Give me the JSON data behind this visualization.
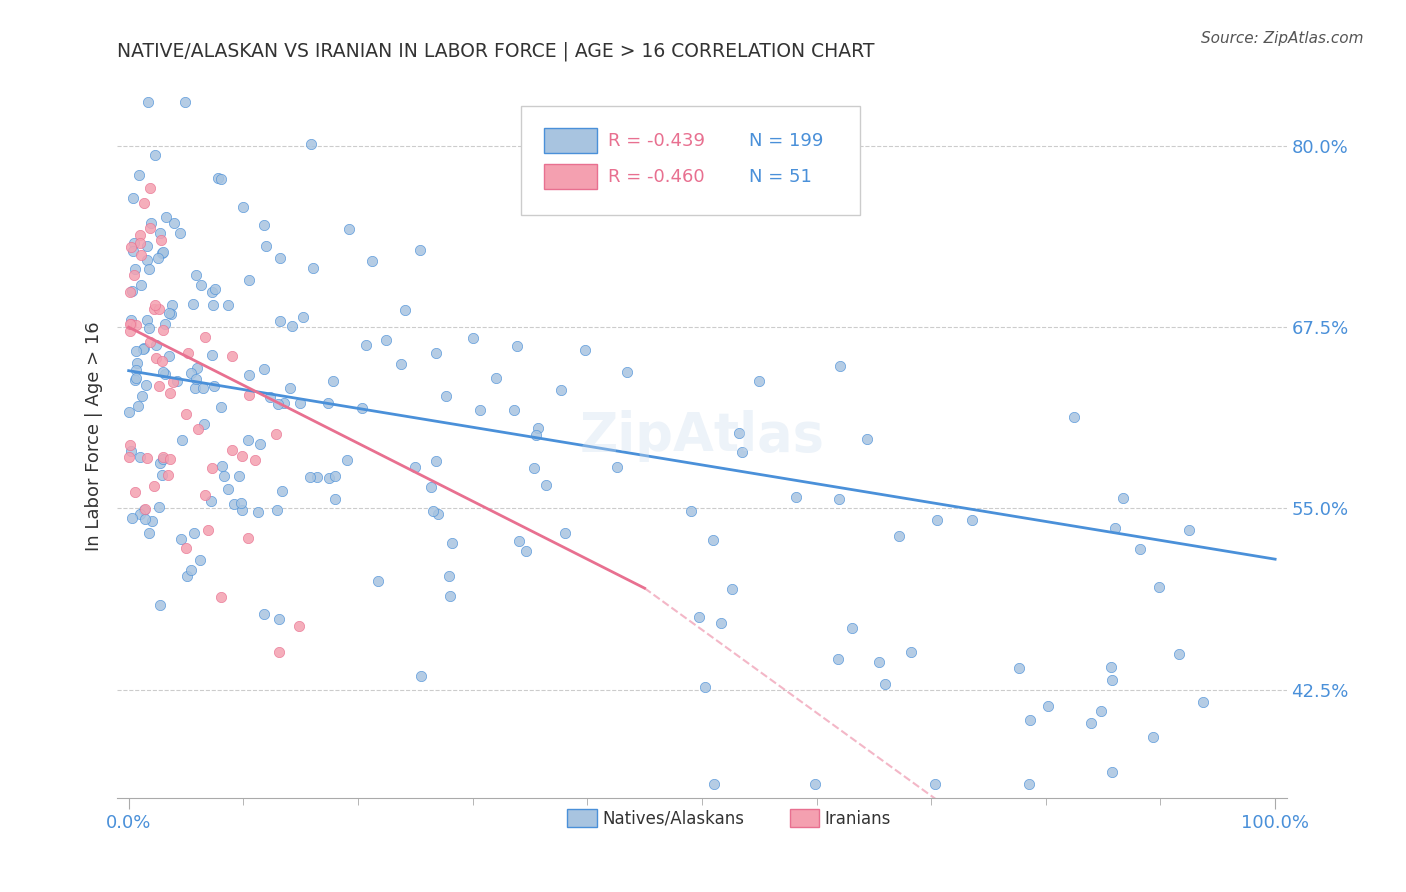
{
  "title": "NATIVE/ALASKAN VS IRANIAN IN LABOR FORCE | AGE > 16 CORRELATION CHART",
  "source": "Source: ZipAtlas.com",
  "xlabel": "",
  "ylabel": "In Labor Force | Age > 16",
  "xlim": [
    0.0,
    1.0
  ],
  "ylim": [
    0.35,
    0.85
  ],
  "yticks": [
    0.425,
    0.55,
    0.675,
    0.8
  ],
  "ytick_labels": [
    "42.5%",
    "55.0%",
    "67.5%",
    "80.0%"
  ],
  "xtick_labels": [
    "0.0%",
    "100.0%"
  ],
  "blue_R": "-0.439",
  "blue_N": "199",
  "pink_R": "-0.460",
  "pink_N": "51",
  "blue_color": "#a8c4e0",
  "pink_color": "#f4a0b0",
  "blue_line_color": "#4a90d9",
  "pink_line_color": "#e87090",
  "grid_color": "#cccccc",
  "title_color": "#333333",
  "axis_label_color": "#333333",
  "tick_color": "#4a90d9",
  "watermark": "ZipAtlas",
  "legend_R_color": "#e05090",
  "legend_N_color": "#4a90d9"
}
